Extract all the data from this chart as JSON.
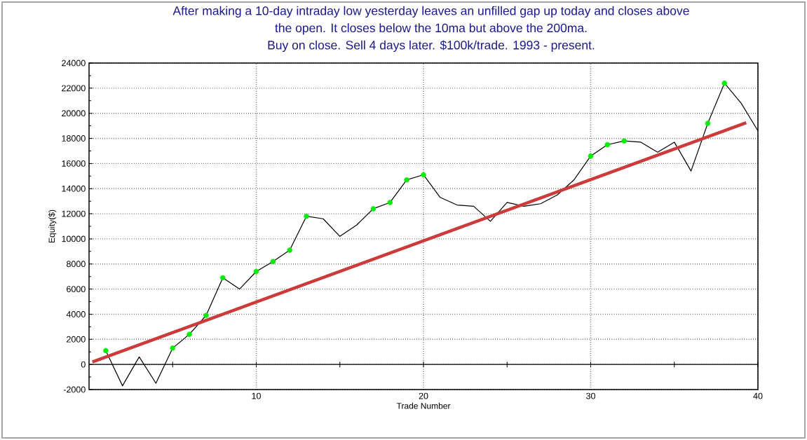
{
  "chart_data": {
    "type": "line",
    "title": "After making a 10-day intraday low yesterday leaves an unfilled gap up today and closes above the open.  It closes below the 10ma but above the 200ma.",
    "subtitle": "Buy on close. Sell 4 days later. $100k/trade. 1993 - present.",
    "xlabel": "Trade Number",
    "ylabel": "Equity($)",
    "x": [
      1,
      2,
      3,
      4,
      5,
      6,
      7,
      8,
      9,
      10,
      11,
      12,
      13,
      14,
      15,
      16,
      17,
      18,
      19,
      20,
      21,
      22,
      23,
      24,
      25,
      26,
      27,
      28,
      29,
      30,
      31,
      32,
      33,
      34,
      35,
      36,
      37,
      38,
      39,
      40
    ],
    "series": [
      {
        "color": "#000000",
        "values": [
          1100,
          -1700,
          600,
          -1500,
          1300,
          2400,
          3900,
          6900,
          6000,
          7400,
          8200,
          9100,
          11800,
          11600,
          10200,
          11100,
          12400,
          12900,
          14700,
          15100,
          13300,
          12700,
          12600,
          11400,
          12900,
          12600,
          12800,
          13500,
          14700,
          16600,
          17500,
          17800,
          17700,
          16900,
          17700,
          15400,
          19200,
          22400,
          20800,
          18600
        ]
      },
      {
        "type": "scatter",
        "color": "#00ee00",
        "marker": "circle",
        "x": [
          1,
          5,
          6,
          7,
          8,
          10,
          11,
          12,
          13,
          17,
          18,
          19,
          20,
          30,
          31,
          32,
          37,
          38
        ],
        "values": [
          1100,
          1300,
          2400,
          3900,
          6900,
          7400,
          8200,
          9100,
          11800,
          12400,
          12900,
          14700,
          15100,
          16600,
          17500,
          17800,
          19200,
          22400
        ]
      },
      {
        "type": "line",
        "color": "#cc3a3a",
        "x": [
          0.2,
          39.3
        ],
        "values": [
          200,
          19250
        ]
      }
    ],
    "xlim": [
      0,
      40
    ],
    "ylim": [
      -2000,
      24000
    ],
    "xticks": [
      {
        "value": 5,
        "label": null
      },
      10,
      {
        "value": 15,
        "label": null
      },
      20,
      {
        "value": 25,
        "label": null
      },
      30,
      {
        "value": 35,
        "label": null
      },
      40
    ],
    "yticks": [
      -2000,
      0,
      2000,
      4000,
      6000,
      8000,
      10000,
      12000,
      14000,
      16000,
      18000,
      20000,
      22000,
      24000
    ],
    "grid": true,
    "marker": "none",
    "line_style": "solid"
  }
}
